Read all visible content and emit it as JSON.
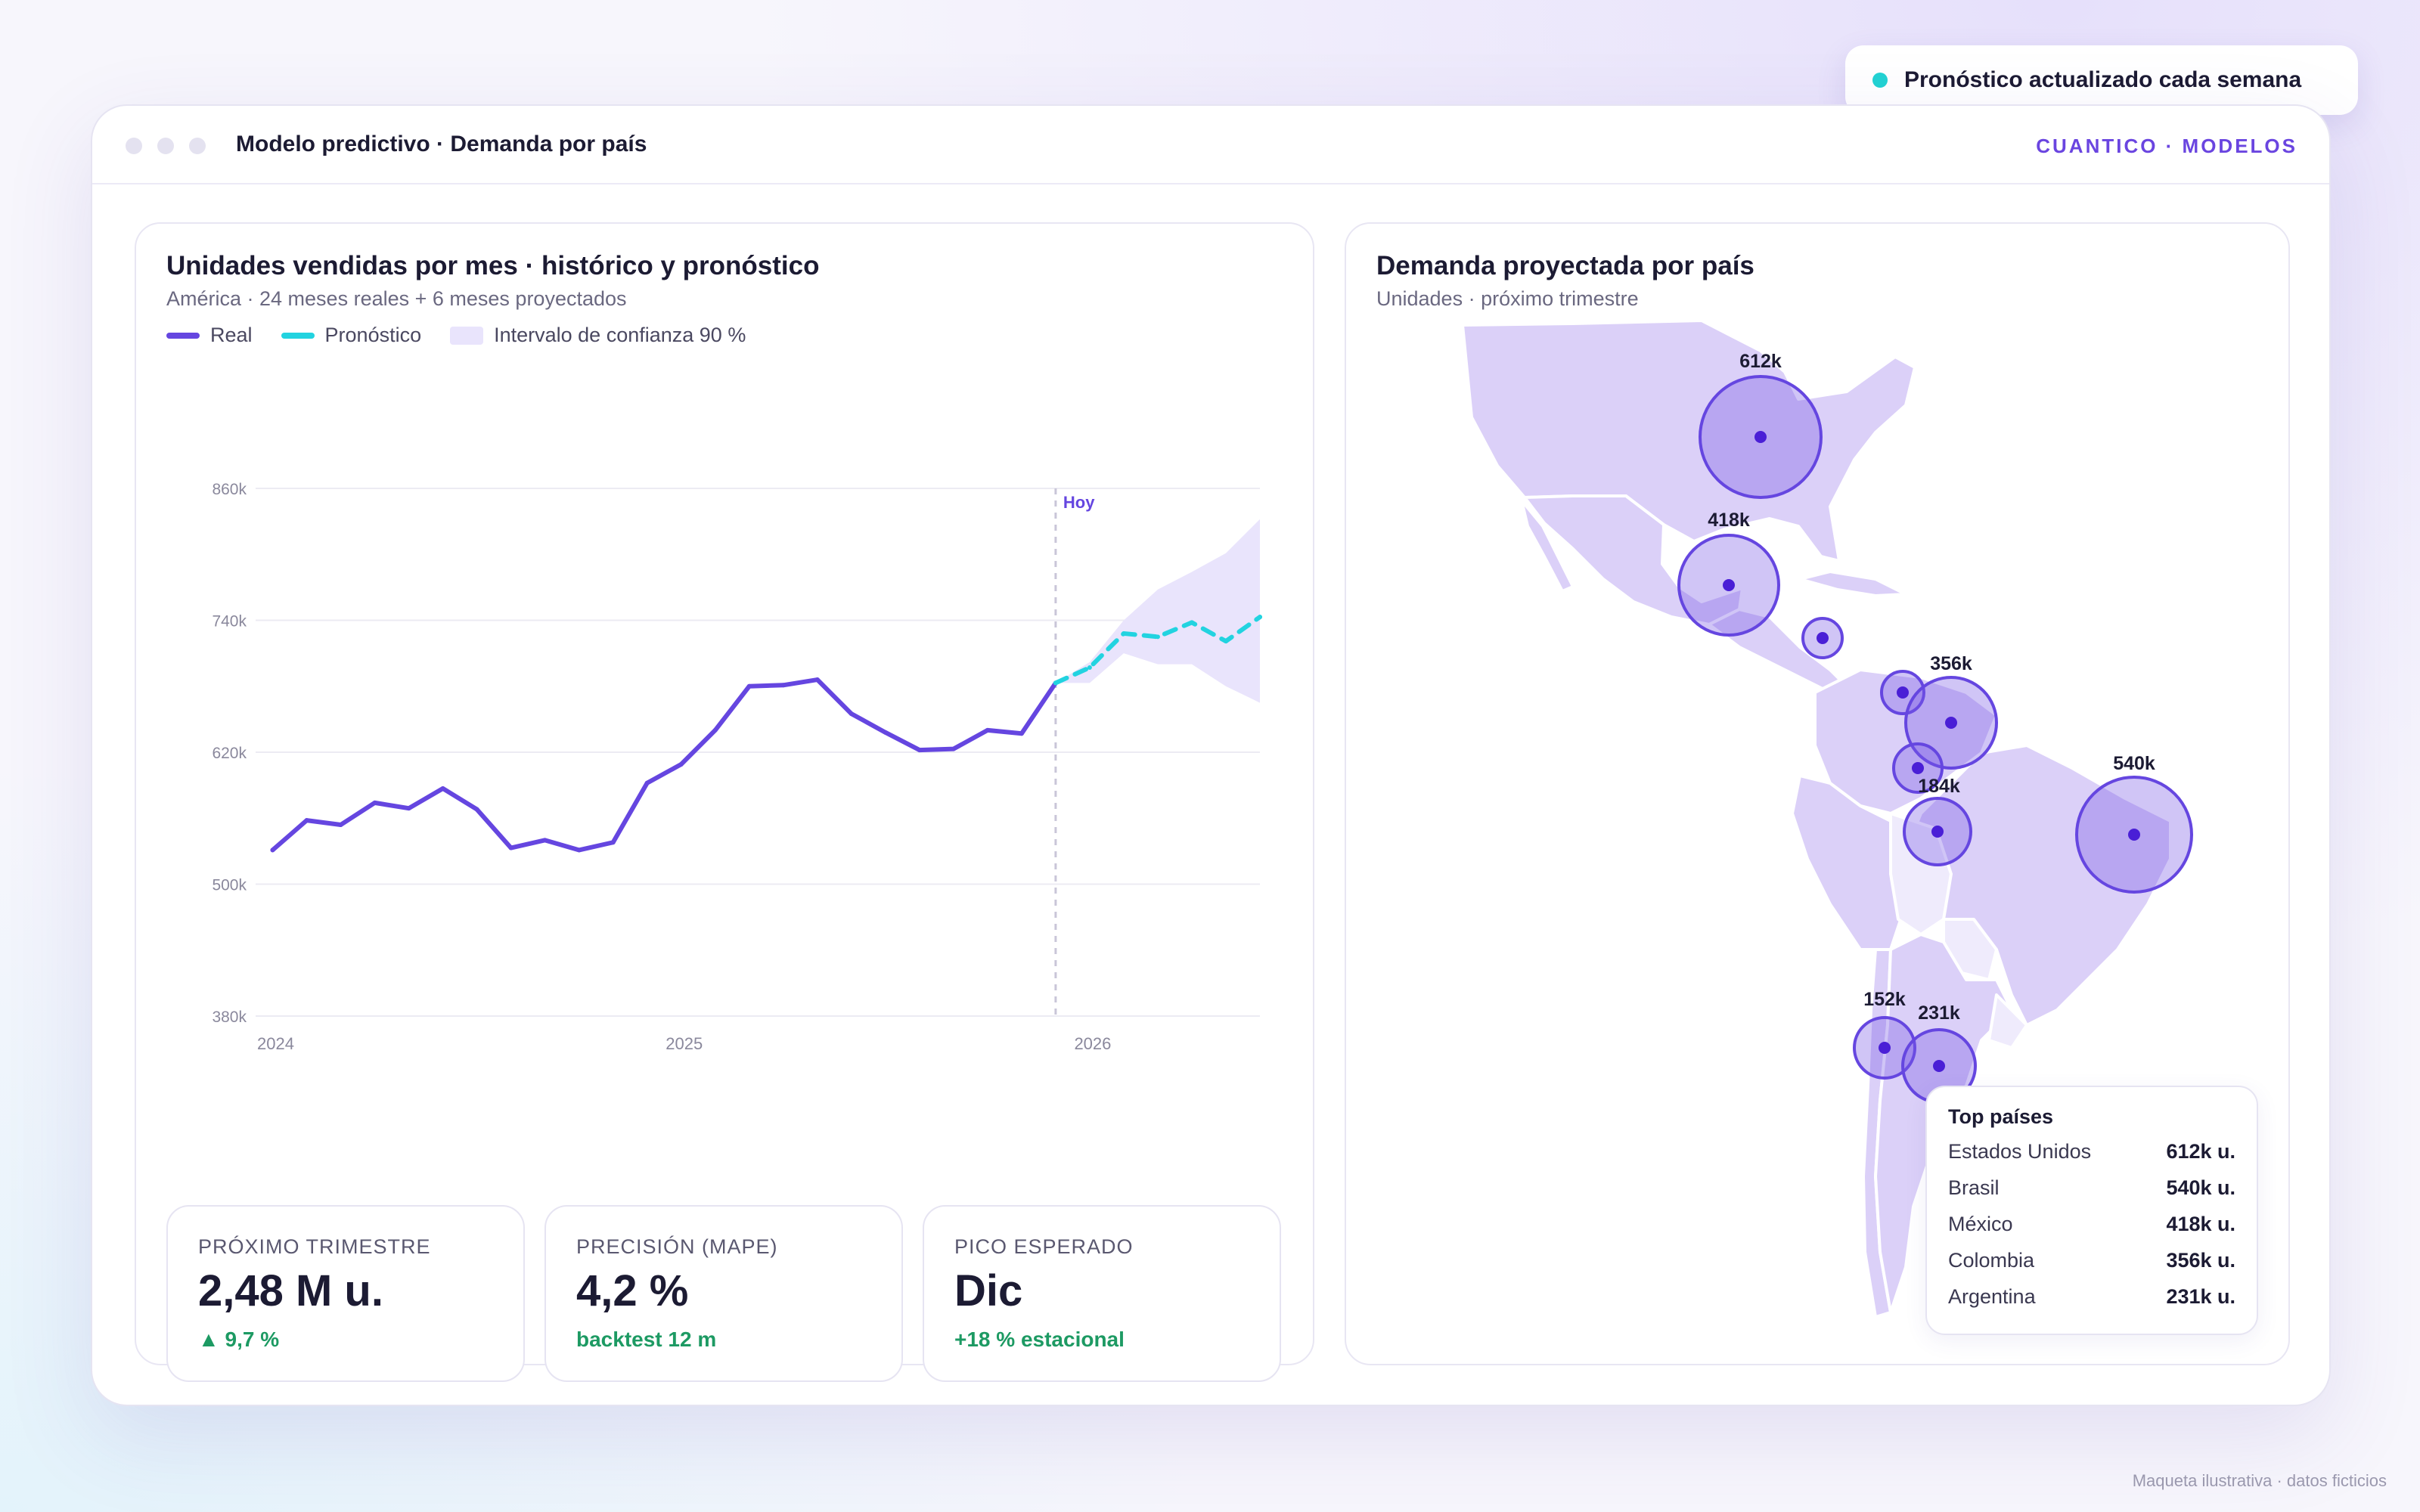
{
  "toast": {
    "text": "Pronóstico actualizado cada semana"
  },
  "window": {
    "title": "Modelo predictivo · Demanda por país",
    "brand": "CUANTICO · MODELOS"
  },
  "chart_card": {
    "title": "Unidades vendidas por mes · histórico y pronóstico",
    "subtitle": "América · 24 meses reales + 6 meses proyectados",
    "legend": {
      "real": "Real",
      "forecast": "Pronóstico",
      "interval": "Intervalo de confianza 90 %"
    },
    "today_label": "Hoy"
  },
  "chart_data": {
    "type": "line",
    "ylim": [
      380,
      860
    ],
    "y_ticks": [
      "860k",
      "740k",
      "620k",
      "500k",
      "380k"
    ],
    "y_tick_values": [
      860,
      740,
      620,
      500,
      380
    ],
    "x_ticks": [
      "2024",
      "2025",
      "2026"
    ],
    "x_tick_months": [
      1,
      13,
      25
    ],
    "today_month": 24,
    "series": [
      {
        "name": "Real",
        "color": "#6546e0",
        "months": [
          1,
          2,
          3,
          4,
          5,
          6,
          7,
          8,
          9,
          10,
          11,
          12,
          13,
          14,
          15,
          16,
          17,
          18,
          19,
          20,
          21,
          22,
          23,
          24
        ],
        "values": [
          531,
          558,
          554,
          574,
          569,
          587,
          568,
          533,
          540,
          531,
          538,
          592,
          609,
          640,
          680,
          681,
          686,
          655,
          638,
          622,
          623,
          640,
          637,
          683
        ]
      },
      {
        "name": "Pronóstico",
        "color": "#22d3e0",
        "months": [
          24,
          25,
          26,
          27,
          28,
          29,
          30
        ],
        "values": [
          683,
          697,
          728,
          725,
          738,
          721,
          743
        ]
      }
    ],
    "interval": {
      "months": [
        24,
        25,
        26,
        27,
        28,
        29,
        30
      ],
      "upper": [
        683,
        702,
        740,
        768,
        784,
        801,
        832
      ],
      "lower": [
        683,
        683,
        710,
        700,
        700,
        680,
        665
      ]
    }
  },
  "kpis": [
    {
      "label": "PRÓXIMO TRIMESTRE",
      "value": "2,48 M u.",
      "delta": "▲ 9,7 %"
    },
    {
      "label": "PRECISIÓN (MAPE)",
      "value": "4,2 %",
      "delta": "backtest 12 m"
    },
    {
      "label": "PICO ESPERADO",
      "value": "Dic",
      "delta": "+18 % estacional"
    }
  ],
  "map_card": {
    "title": "Demanda proyectada por país",
    "subtitle": "Unidades · próximo trimestre",
    "bubble_labels": [
      "612k",
      "418k",
      "356k",
      "184k",
      "540k",
      "152k",
      "231k"
    ]
  },
  "top_countries": {
    "title": "Top países",
    "rows": [
      {
        "name": "Estados Unidos",
        "value": "612k u."
      },
      {
        "name": "Brasil",
        "value": "540k u."
      },
      {
        "name": "México",
        "value": "418k u."
      },
      {
        "name": "Colombia",
        "value": "356k u."
      },
      {
        "name": "Argentina",
        "value": "231k u."
      }
    ]
  },
  "footnote": "Maqueta ilustrativa · datos ficticios",
  "colors": {
    "accent": "#6546e0",
    "forecast": "#22d3e0",
    "interval": "#e9e4fc",
    "positive": "#1d9a63"
  }
}
